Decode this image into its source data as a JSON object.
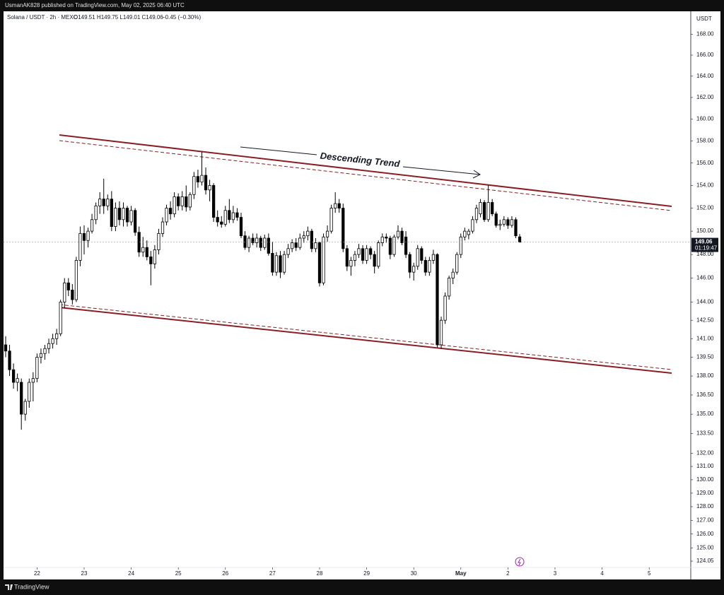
{
  "chart_data": {
    "type": "candlestick",
    "publisher": "UsmanAK828 published on TradingView.com, May 02, 2025 06:40 UTC",
    "symbol": "Solana / USDT · 2h · MEXC",
    "ohlc_text": "O149.51 H149.75 L149.01 C149.06",
    "change_text": "−0.45 (−0.30%)",
    "currency": "USDT",
    "countdown": "01:19:47",
    "annotation": "Descending Trend",
    "brand": "TradingView",
    "log_scale": true,
    "grid": false,
    "up_color": "#ffffff",
    "down_color": "#000000",
    "ylim": [
      123.6,
      170.1
    ],
    "yticks": [
      {
        "value": 168,
        "label": "168.00"
      },
      {
        "value": 166,
        "label": "166.00"
      },
      {
        "value": 164,
        "label": "164.00"
      },
      {
        "value": 162,
        "label": "162.00"
      },
      {
        "value": 160,
        "label": "160.00"
      },
      {
        "value": 158,
        "label": "158.00"
      },
      {
        "value": 156,
        "label": "156.00"
      },
      {
        "value": 154,
        "label": "154.00"
      },
      {
        "value": 152,
        "label": "152.00"
      },
      {
        "value": 150,
        "label": "150.00"
      },
      {
        "value": 148,
        "label": "148.00"
      },
      {
        "value": 146,
        "label": "146.00"
      },
      {
        "value": 144,
        "label": "144.00"
      },
      {
        "value": 142.5,
        "label": "142.50"
      },
      {
        "value": 141,
        "label": "141.00"
      },
      {
        "value": 139.5,
        "label": "139.50"
      },
      {
        "value": 138,
        "label": "138.00"
      },
      {
        "value": 136.5,
        "label": "136.50"
      },
      {
        "value": 135,
        "label": "135.00"
      },
      {
        "value": 133.5,
        "label": "133.50"
      },
      {
        "value": 132,
        "label": "132.00"
      },
      {
        "value": 131,
        "label": "131.00"
      },
      {
        "value": 130,
        "label": "130.00"
      },
      {
        "value": 129,
        "label": "129.00"
      },
      {
        "value": 128,
        "label": "128.00"
      },
      {
        "value": 127,
        "label": "127.00"
      },
      {
        "value": 126,
        "label": "126.00"
      },
      {
        "value": 125,
        "label": "125.00"
      },
      124.05
    ],
    "xlim": [
      -0.54,
      174.6
    ],
    "xticks": [
      {
        "value": 8,
        "label": "22"
      },
      {
        "value": 20,
        "label": "23"
      },
      {
        "value": 32,
        "label": "24"
      },
      {
        "value": 44,
        "label": "25"
      },
      {
        "value": 56,
        "label": "26"
      },
      {
        "value": 68,
        "label": "27"
      },
      {
        "value": 80,
        "label": "28"
      },
      {
        "value": 92,
        "label": "29"
      },
      {
        "value": 104,
        "label": "30"
      },
      {
        "value": 116,
        "label": "May"
      },
      {
        "value": 128,
        "label": "2"
      },
      {
        "value": 140,
        "label": "3"
      },
      {
        "value": 152,
        "label": "4"
      },
      {
        "value": 164,
        "label": "5"
      }
    ],
    "candles": [
      [
        140.5,
        141.2,
        139.5,
        140
      ],
      [
        140,
        140.5,
        138,
        138.5
      ],
      [
        138.5,
        139,
        137,
        137.5
      ],
      [
        137.5,
        138.2,
        136.8,
        137.8
      ],
      [
        137.5,
        137.8,
        133.8,
        135
      ],
      [
        135,
        136.2,
        134.5,
        136
      ],
      [
        136,
        137.8,
        135.5,
        137.5
      ],
      [
        137.5,
        138.3,
        136,
        137.8
      ],
      [
        137.8,
        139.8,
        137.5,
        139.5
      ],
      [
        139.5,
        140.2,
        139,
        139.8
      ],
      [
        139.8,
        140.5,
        139.3,
        140.2
      ],
      [
        140.2,
        141,
        139.8,
        140.6
      ],
      [
        140.6,
        141.4,
        140.2,
        141
      ],
      [
        141,
        141.8,
        140.5,
        141.4
      ],
      [
        141.4,
        144.2,
        141.2,
        144
      ],
      [
        144,
        146,
        143.5,
        145.6
      ],
      [
        145.6,
        146,
        144.5,
        145
      ],
      [
        145,
        145.5,
        143.8,
        144.2
      ],
      [
        144.2,
        147.8,
        144,
        147.5
      ],
      [
        147.5,
        150.4,
        147,
        149.8
      ],
      [
        149.8,
        150.5,
        148,
        149.2
      ],
      [
        149.2,
        150.3,
        148.6,
        150
      ],
      [
        150,
        151.5,
        149.8,
        151
      ],
      [
        151,
        152.5,
        150.6,
        152.2
      ],
      [
        152.2,
        153.4,
        151.5,
        152.8
      ],
      [
        152.8,
        154.6,
        151.5,
        152.2
      ],
      [
        152.2,
        153.2,
        151.8,
        152.8
      ],
      [
        152.8,
        153.5,
        150,
        150.4
      ],
      [
        150.4,
        152.5,
        150,
        152
      ],
      [
        152,
        152.6,
        150.5,
        151
      ],
      [
        151,
        152.5,
        150.4,
        152
      ],
      [
        152,
        152.2,
        150.4,
        150.8
      ],
      [
        150.8,
        152.2,
        150.5,
        151.8
      ],
      [
        151.8,
        152,
        149.6,
        149.9
      ],
      [
        149.9,
        150.4,
        147.8,
        148.2
      ],
      [
        148.2,
        149.5,
        147.8,
        148.6
      ],
      [
        148.6,
        149.2,
        147.5,
        147.8
      ],
      [
        147.8,
        148.3,
        145.4,
        147.2
      ],
      [
        147.2,
        148.8,
        146.8,
        148.4
      ],
      [
        148.4,
        150.2,
        148,
        149.8
      ],
      [
        149.8,
        151.2,
        149.5,
        150.8
      ],
      [
        150.8,
        152.3,
        150.5,
        152
      ],
      [
        152,
        152.6,
        151,
        151.5
      ],
      [
        151.5,
        153.4,
        151.2,
        153
      ],
      [
        153,
        153.3,
        151.8,
        152.2
      ],
      [
        152.2,
        153.5,
        151.8,
        153
      ],
      [
        153,
        154,
        151.7,
        152.1
      ],
      [
        152.1,
        153.4,
        151.8,
        153.2
      ],
      [
        153.2,
        155.2,
        152.8,
        154.8
      ],
      [
        154.8,
        155.4,
        153.8,
        154.3
      ],
      [
        154.3,
        157,
        154,
        154.9
      ],
      [
        154.9,
        155.6,
        153.2,
        153.6
      ],
      [
        153.6,
        154.5,
        152.6,
        154
      ],
      [
        154,
        154.2,
        150.8,
        151.2
      ],
      [
        151.2,
        151.8,
        150.4,
        150.8
      ],
      [
        150.8,
        151.3,
        150.3,
        150.6
      ],
      [
        150.6,
        152.2,
        150.4,
        151.8
      ],
      [
        151.8,
        152.8,
        150.7,
        151
      ],
      [
        151,
        152.2,
        150.7,
        151.6
      ],
      [
        151.6,
        152,
        150.9,
        151.2
      ],
      [
        151.2,
        151.6,
        149.4,
        149.6
      ],
      [
        149.6,
        150,
        148.4,
        148.6
      ],
      [
        148.6,
        149.6,
        148.2,
        149.4
      ],
      [
        149.4,
        149.8,
        148.8,
        149
      ],
      [
        149,
        149.8,
        148.6,
        149.4
      ],
      [
        149.4,
        149.6,
        148.3,
        148.6
      ],
      [
        148.6,
        149.7,
        148.4,
        149.4
      ],
      [
        149.4,
        149.8,
        147.9,
        148.1
      ],
      [
        148.1,
        149.1,
        146.2,
        146.5
      ],
      [
        146.5,
        148.2,
        146.2,
        147.9
      ],
      [
        147.9,
        148.3,
        146,
        146.5
      ],
      [
        146.5,
        148.3,
        146.3,
        148
      ],
      [
        148,
        148.9,
        147.7,
        148.5
      ],
      [
        148.5,
        149.3,
        148.2,
        149
      ],
      [
        149,
        149.4,
        148.3,
        148.6
      ],
      [
        148.6,
        149.8,
        148.4,
        149.4
      ],
      [
        149.4,
        150,
        149,
        149.6
      ],
      [
        149.6,
        150.4,
        149.2,
        150
      ],
      [
        150,
        150.2,
        148.2,
        148.5
      ],
      [
        148.5,
        149.4,
        148.2,
        149
      ],
      [
        149,
        149.1,
        145.3,
        145.6
      ],
      [
        145.6,
        149.8,
        145.4,
        149.5
      ],
      [
        149.5,
        150.5,
        149.1,
        150
      ],
      [
        150,
        152.3,
        149.8,
        152
      ],
      [
        152,
        153.4,
        151.6,
        152.4
      ],
      [
        152.4,
        152.8,
        151.6,
        152
      ],
      [
        152,
        152.4,
        148.2,
        148.5
      ],
      [
        148.5,
        148.8,
        146.6,
        147
      ],
      [
        147,
        147.8,
        146.2,
        147.5
      ],
      [
        147.5,
        148.3,
        147,
        148
      ],
      [
        148,
        148.9,
        147.7,
        148.5
      ],
      [
        148.5,
        148.8,
        147.2,
        147.5
      ],
      [
        147.5,
        148.8,
        147.2,
        148.5
      ],
      [
        148.5,
        148.7,
        147.6,
        148
      ],
      [
        148,
        148.3,
        146.4,
        147
      ],
      [
        147,
        149.2,
        146.8,
        149
      ],
      [
        149,
        149.8,
        148.7,
        149.5
      ],
      [
        149.5,
        149.8,
        149,
        149.4
      ],
      [
        149.4,
        149.6,
        147.6,
        148
      ],
      [
        148,
        149.7,
        147.8,
        149.5
      ],
      [
        149.5,
        150.5,
        149.3,
        150
      ],
      [
        150,
        150.3,
        148.8,
        149
      ],
      [
        149.5,
        150,
        147.7,
        148
      ],
      [
        148,
        148.2,
        146,
        146.5
      ],
      [
        146.5,
        147.3,
        145.8,
        147
      ],
      [
        147,
        148.8,
        146.7,
        148.5
      ],
      [
        148.5,
        148.7,
        147.2,
        147.5
      ],
      [
        147.5,
        147.8,
        146.2,
        146.5
      ],
      [
        146.5,
        147.8,
        146.2,
        147.5
      ],
      [
        147.5,
        148.4,
        147.2,
        148
      ],
      [
        148,
        148.1,
        140.3,
        140.5
      ],
      [
        140.5,
        142.8,
        140.2,
        142.5
      ],
      [
        142.5,
        144.8,
        142.2,
        144.5
      ],
      [
        144.5,
        146.2,
        144.2,
        146
      ],
      [
        146,
        146.8,
        145.5,
        146.5
      ],
      [
        146.5,
        148.2,
        146.3,
        148
      ],
      [
        148,
        149.8,
        147.7,
        149.5
      ],
      [
        149.5,
        150.3,
        149.2,
        150
      ],
      [
        149.7,
        150.2,
        149.3,
        150
      ],
      [
        150,
        151.3,
        149.8,
        151
      ],
      [
        151,
        152.3,
        150.7,
        152
      ],
      [
        151.5,
        152.8,
        151.2,
        152.5
      ],
      [
        152.5,
        152.7,
        150.8,
        151
      ],
      [
        151,
        154,
        150.8,
        152.5
      ],
      [
        152.5,
        152.8,
        151.3,
        151.5
      ],
      [
        151.5,
        151.7,
        150.3,
        150.5
      ],
      [
        150.5,
        151,
        150.1,
        150.6
      ],
      [
        150.6,
        151.3,
        150.4,
        151
      ],
      [
        151,
        151.2,
        150.2,
        150.5
      ],
      [
        150.5,
        151.3,
        150.3,
        151
      ],
      [
        151,
        151.2,
        149.4,
        149.6
      ],
      [
        149.51,
        149.75,
        149.01,
        149.06
      ]
    ]
  }
}
